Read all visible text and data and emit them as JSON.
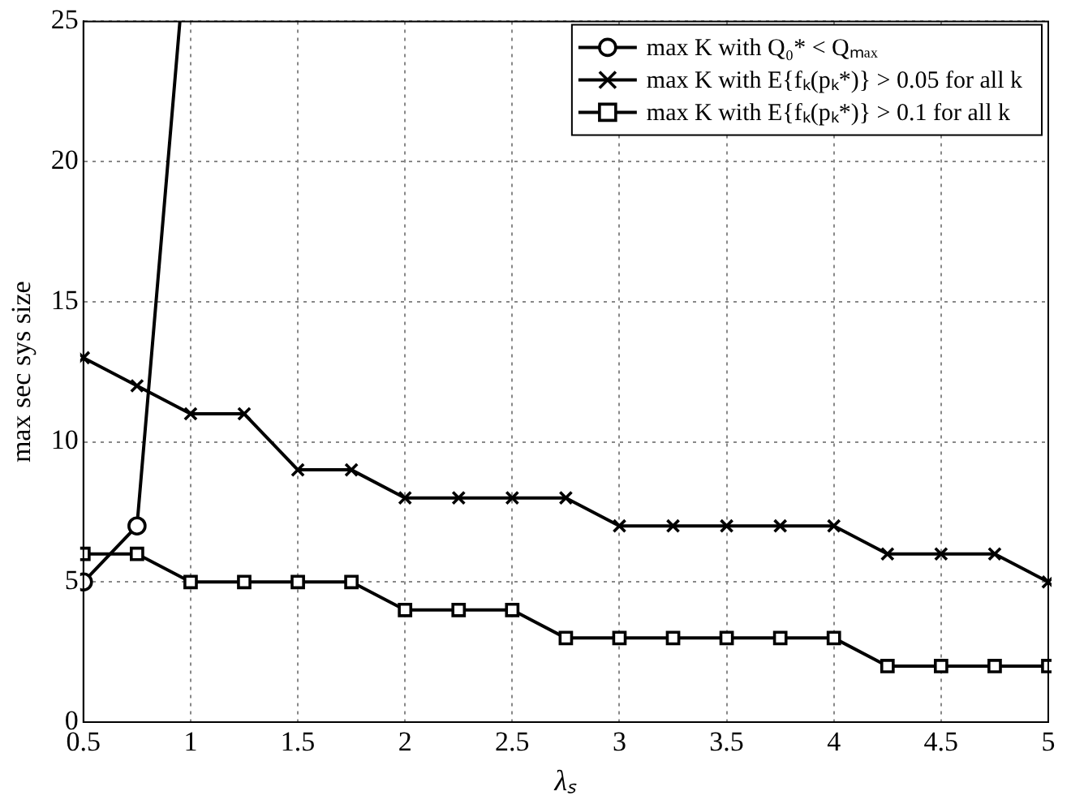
{
  "chart_data": {
    "type": "line",
    "xlabel": "λₛ",
    "ylabel": "max sec sys size",
    "xlim": [
      0.5,
      5
    ],
    "ylim": [
      0,
      25
    ],
    "xticks": [
      0.5,
      1,
      1.5,
      2,
      2.5,
      3,
      3.5,
      4,
      4.5,
      5
    ],
    "yticks": [
      0,
      5,
      10,
      15,
      20,
      25
    ],
    "grid": true,
    "legend": "top right",
    "x": [
      0.5,
      0.75,
      1,
      1.25,
      1.5,
      1.75,
      2,
      2.25,
      2.5,
      2.75,
      3,
      3.25,
      3.5,
      3.75,
      4,
      4.25,
      4.5,
      4.75,
      5
    ],
    "series": [
      {
        "name": "max K with Q₀* < Qₘₐₓ",
        "color": "#000000",
        "marker": "circle",
        "x": [
          0.5,
          0.75,
          0.95
        ],
        "values": [
          5,
          7,
          25
        ]
      },
      {
        "name": "max K with E{fₖ(pₖ*)} > 0.05 for all k",
        "color": "#000000",
        "marker": "cross",
        "values": [
          13,
          12,
          11,
          11,
          9,
          9,
          8,
          8,
          8,
          8,
          7,
          7,
          7,
          7,
          7,
          6,
          6,
          6,
          5
        ]
      },
      {
        "name": "max K with E{fₖ(pₖ*)} > 0.1 for all k",
        "color": "#000000",
        "marker": "square",
        "values": [
          6,
          6,
          5,
          5,
          5,
          5,
          4,
          4,
          4,
          3,
          3,
          3,
          3,
          3,
          3,
          2,
          2,
          2,
          2
        ]
      }
    ]
  }
}
